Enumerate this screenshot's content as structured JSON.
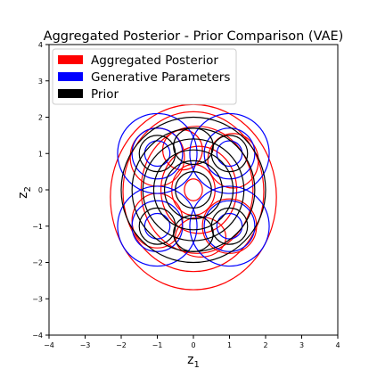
{
  "chart_data": {
    "type": "contour",
    "title": "Aggregated Posterior - Prior Comparison (VAE)",
    "xlabel_base": "z",
    "xlabel_sub": "1",
    "ylabel_base": "z",
    "ylabel_sub": "2",
    "xlim": [
      -4,
      4
    ],
    "ylim": [
      -4,
      4
    ],
    "xticks": [
      "−4",
      "−3",
      "−2",
      "−1",
      "0",
      "1",
      "2",
      "3",
      "4"
    ],
    "yticks": [
      "−4",
      "−3",
      "−2",
      "−1",
      "0",
      "1",
      "2",
      "3",
      "4"
    ],
    "grid": false,
    "legend_position": "top-left",
    "series": [
      {
        "name": "Aggregated Posterior",
        "color": "#ff0000",
        "contours": [
          {
            "cx": 0.0,
            "cy": -0.2,
            "rx": 2.3,
            "ry": 2.55
          },
          {
            "cx": 0.0,
            "cy": -0.05,
            "rx": 1.95,
            "ry": 2.2
          },
          {
            "cx": 0.1,
            "cy": 0.0,
            "rx": 1.55,
            "ry": 1.75
          },
          {
            "cx": 0.15,
            "cy": 0.0,
            "rx": 1.05,
            "ry": 1.2
          },
          {
            "cx": 0.0,
            "cy": 0.0,
            "rx": 0.6,
            "ry": 0.7
          },
          {
            "cx": 0.0,
            "cy": 0.0,
            "rx": 0.25,
            "ry": 0.3
          },
          {
            "cx": -1.0,
            "cy": 0.9,
            "rx": 0.75,
            "ry": 0.8
          },
          {
            "cx": 1.1,
            "cy": 0.8,
            "rx": 0.7,
            "ry": 0.75
          },
          {
            "cx": -1.0,
            "cy": -0.85,
            "rx": 0.7,
            "ry": 0.75
          },
          {
            "cx": 1.0,
            "cy": -1.0,
            "rx": 0.75,
            "ry": 0.75
          },
          {
            "cx": -0.3,
            "cy": 1.1,
            "rx": 0.55,
            "ry": 0.55
          },
          {
            "cx": 0.2,
            "cy": -1.3,
            "rx": 0.7,
            "ry": 0.55
          }
        ]
      },
      {
        "name": "Generative Parameters",
        "color": "#0000ff",
        "contours": [
          {
            "cx": -1.0,
            "cy": 1.0,
            "rx": 1.1,
            "ry": 1.1
          },
          {
            "cx": -1.0,
            "cy": 1.0,
            "rx": 0.7,
            "ry": 0.7
          },
          {
            "cx": -1.0,
            "cy": 1.0,
            "rx": 0.35,
            "ry": 0.35
          },
          {
            "cx": 1.0,
            "cy": 1.0,
            "rx": 1.1,
            "ry": 1.1
          },
          {
            "cx": 1.0,
            "cy": 1.0,
            "rx": 0.7,
            "ry": 0.7
          },
          {
            "cx": 1.0,
            "cy": 1.0,
            "rx": 0.35,
            "ry": 0.35
          },
          {
            "cx": -1.0,
            "cy": -1.0,
            "rx": 1.1,
            "ry": 1.1
          },
          {
            "cx": -1.0,
            "cy": -1.0,
            "rx": 0.7,
            "ry": 0.7
          },
          {
            "cx": -1.0,
            "cy": -1.0,
            "rx": 0.35,
            "ry": 0.35
          },
          {
            "cx": 1.0,
            "cy": -1.0,
            "rx": 1.1,
            "ry": 1.1
          },
          {
            "cx": 1.0,
            "cy": -1.0,
            "rx": 0.7,
            "ry": 0.7
          },
          {
            "cx": 1.0,
            "cy": -1.0,
            "rx": 0.35,
            "ry": 0.35
          }
        ]
      },
      {
        "name": "Prior",
        "color": "#000000",
        "contours": [
          {
            "cx": 0.0,
            "cy": 0.0,
            "rx": 2.0,
            "ry": 2.0
          },
          {
            "cx": 0.0,
            "cy": 0.0,
            "rx": 1.7,
            "ry": 1.7
          },
          {
            "cx": 0.0,
            "cy": 0.0,
            "rx": 1.4,
            "ry": 1.4
          },
          {
            "cx": 0.0,
            "cy": 0.0,
            "rx": 1.1,
            "ry": 1.1
          },
          {
            "cx": 0.0,
            "cy": 0.0,
            "rx": 0.8,
            "ry": 0.8
          },
          {
            "cx": 0.0,
            "cy": 0.0,
            "rx": 0.5,
            "ry": 0.5
          },
          {
            "cx": -1.0,
            "cy": 1.0,
            "rx": 0.5,
            "ry": 0.5
          },
          {
            "cx": 1.0,
            "cy": 1.0,
            "rx": 0.5,
            "ry": 0.5
          },
          {
            "cx": -1.0,
            "cy": -1.0,
            "rx": 0.5,
            "ry": 0.5
          },
          {
            "cx": 1.0,
            "cy": -1.0,
            "rx": 0.5,
            "ry": 0.5
          },
          {
            "cx": 0.0,
            "cy": 1.2,
            "rx": 0.55,
            "ry": 0.5
          },
          {
            "cx": 0.0,
            "cy": -1.2,
            "rx": 0.55,
            "ry": 0.5
          }
        ]
      }
    ]
  }
}
